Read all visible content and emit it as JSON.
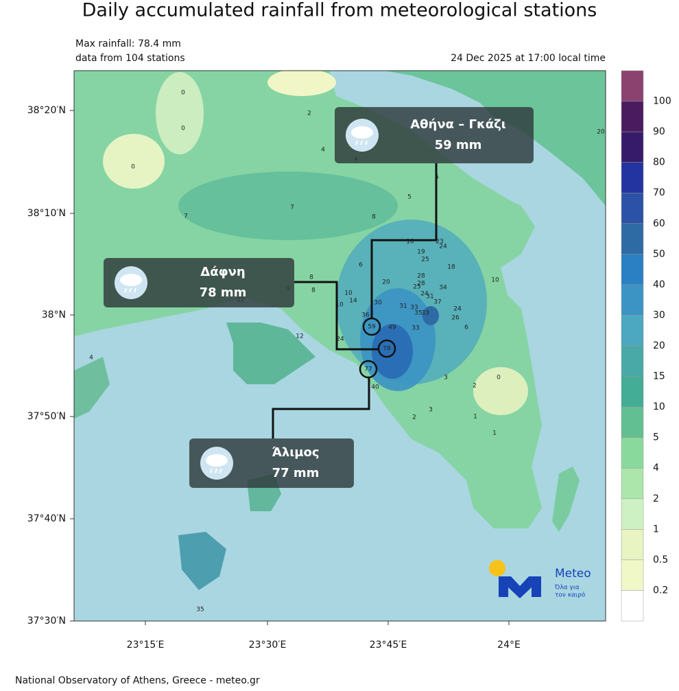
{
  "title": "Daily accumulated rainfall from meteorological stations",
  "info": {
    "max_rainfall": "Max rainfall: 78.4 mm",
    "stations_count": "data from 104 stations",
    "timestamp": "24 Dec 2025 at 17:00 local time"
  },
  "map": {
    "lat_ticks": [
      "38°20′N",
      "38°10′N",
      "38°N",
      "37°50′N",
      "37°40′N",
      "37°30′N"
    ],
    "lon_ticks": [
      "23°15′E",
      "23°30′E",
      "23°45′E",
      "24°E"
    ],
    "stations": [
      0,
      0,
      0,
      2,
      4,
      4,
      7,
      7,
      5,
      5,
      8,
      10,
      23,
      24,
      19,
      25,
      18,
      6,
      8,
      9,
      8,
      10,
      20,
      28,
      28,
      34,
      25,
      24,
      31,
      37,
      10,
      12,
      10,
      14,
      30,
      31,
      33,
      35,
      33,
      24,
      26,
      36,
      33,
      6,
      49,
      12,
      24,
      40,
      3,
      2,
      0,
      3,
      2,
      1,
      1,
      4,
      20,
      35
    ],
    "highlighted": [
      59,
      78,
      77
    ],
    "callouts": [
      {
        "name": "Αθήνα – Γκάζι",
        "amount": "59 mm"
      },
      {
        "name": "Δάφνη",
        "amount": "78 mm"
      },
      {
        "name": "Άλιμος",
        "amount": "77 mm"
      }
    ]
  },
  "colorbar": {
    "levels": [
      100,
      90,
      80,
      70,
      60,
      50,
      40,
      30,
      20,
      15,
      10,
      5,
      4,
      2,
      1,
      0.5,
      0.2
    ],
    "colors": [
      "#8b426f",
      "#4a1c5f",
      "#371b6b",
      "#2333a0",
      "#2b52a6",
      "#2e6aa3",
      "#2a80c2",
      "#3b94c3",
      "#4ba8c0",
      "#49a9a6",
      "#43ad95",
      "#62bf91",
      "#8ad99c",
      "#ace6aa",
      "#cdf1c2",
      "#e8f4c1",
      "#f0f8c8",
      "#ffffff"
    ]
  },
  "logo": {
    "brand": "Meteo",
    "line1": "Όλα για",
    "line2": "τον καιρό"
  },
  "footer": "National Observatory of Athens, Greece - meteo.gr"
}
